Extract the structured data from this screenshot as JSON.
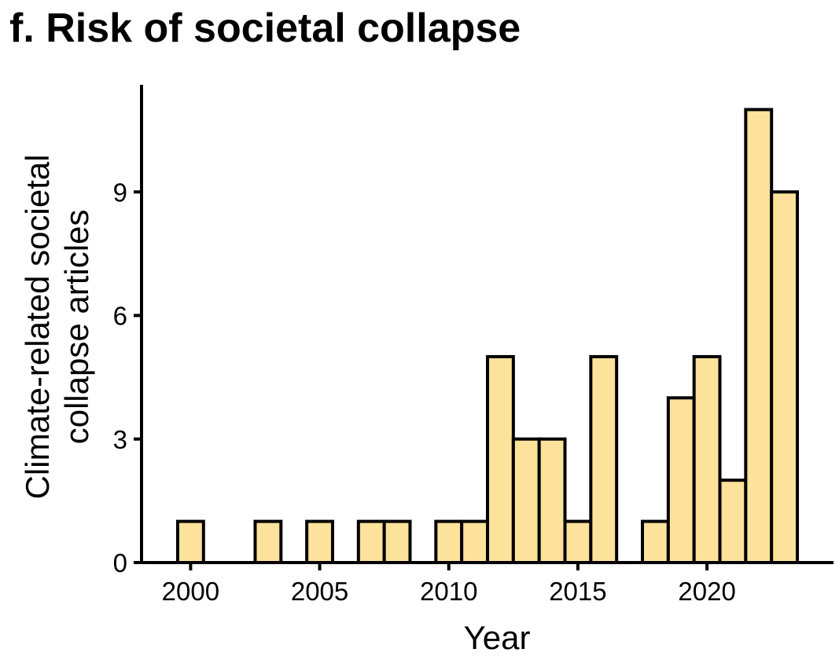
{
  "chart_data": {
    "type": "bar",
    "title": "f. Risk of societal collapse",
    "xlabel": "Year",
    "ylabel_line1": "Climate-related societal",
    "ylabel_line2": "collapse articles",
    "x": [
      2000,
      2003,
      2005,
      2007,
      2008,
      2010,
      2011,
      2012,
      2013,
      2014,
      2015,
      2016,
      2018,
      2019,
      2020,
      2021,
      2022,
      2023
    ],
    "values": [
      1,
      1,
      1,
      1,
      1,
      1,
      1,
      5,
      3,
      3,
      1,
      5,
      1,
      4,
      5,
      2,
      11,
      9
    ],
    "xlim": [
      1998.1,
      2024.9
    ],
    "ylim": [
      0,
      11.6
    ],
    "x_ticks": [
      2000,
      2005,
      2010,
      2015,
      2020
    ],
    "y_ticks": [
      0,
      3,
      6,
      9
    ],
    "bar_color": "#FCE29B",
    "grid": false
  }
}
